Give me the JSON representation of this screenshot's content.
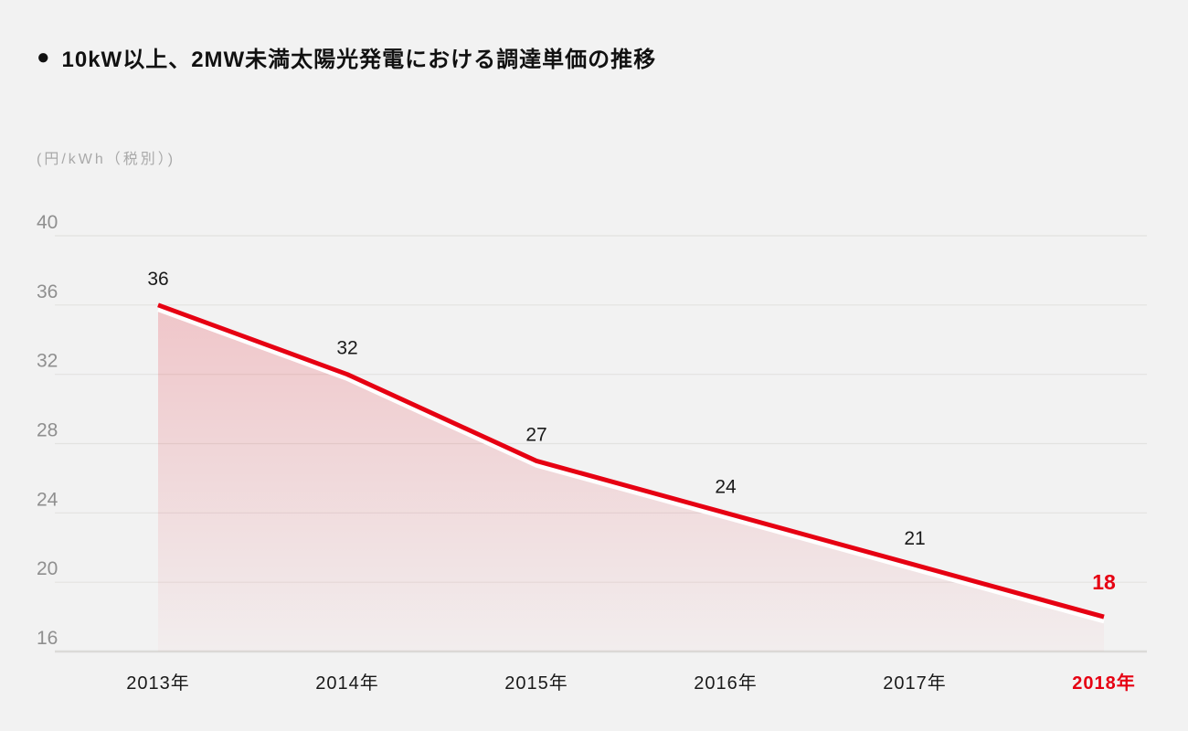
{
  "header": {
    "marker": "●",
    "title": "10kW以上、2MW未満太陽光発電における調達単価の推移"
  },
  "colors": {
    "background": "#f2f2f2",
    "accent_red": "#e60012",
    "grid_line": "#e3e2e0",
    "axis_line": "#dbdad8",
    "tick_text": "#8f8f8f",
    "label_text": "#1a1a1a",
    "area_fill_top": "rgba(227,0,19,0.18)",
    "area_fill_bottom": "rgba(227,0,19,0.02)"
  },
  "chart_data": {
    "type": "area",
    "title": "10kW以上、2MW未満太陽光発電における調達単価の推移",
    "unit_label": "(円/kWh（税別）)",
    "ylabel": "円/kWh（税別）",
    "xlabel": "",
    "categories": [
      "2013年",
      "2014年",
      "2015年",
      "2016年",
      "2017年",
      "2018年"
    ],
    "values": [
      36,
      32,
      27,
      24,
      21,
      18
    ],
    "data_labels": [
      "36",
      "32",
      "27",
      "24",
      "21",
      "18"
    ],
    "yticks": [
      40,
      36,
      32,
      28,
      24,
      20,
      16
    ],
    "ylim": [
      16,
      40
    ],
    "grid": "horizontal-only",
    "legend": "none",
    "line_color": "#e60012",
    "area_style": "pink gradient fading downward with white offset stroke under line",
    "highlight_last": true,
    "highlight": {
      "category": "2018年",
      "value": 18,
      "color": "#e60012"
    }
  }
}
